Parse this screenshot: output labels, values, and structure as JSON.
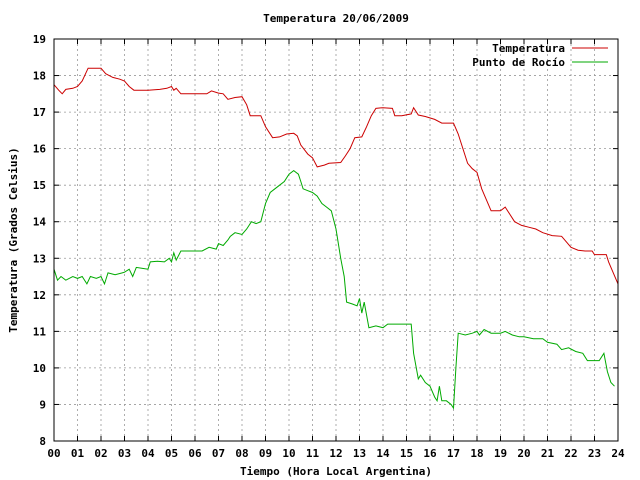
{
  "chart_data": {
    "type": "line",
    "title": "Temperatura 20/06/2009",
    "xlabel": "Tiempo (Hora Local Argentina)",
    "ylabel": "Temperatura (Grados Celsius)",
    "xlim": [
      0,
      24
    ],
    "ylim": [
      8,
      19
    ],
    "x_ticks": [
      "00",
      "01",
      "02",
      "03",
      "04",
      "05",
      "06",
      "07",
      "08",
      "09",
      "10",
      "11",
      "12",
      "13",
      "14",
      "15",
      "16",
      "17",
      "18",
      "19",
      "20",
      "21",
      "22",
      "23",
      "24"
    ],
    "y_ticks": [
      "8",
      "9",
      "10",
      "11",
      "12",
      "13",
      "14",
      "15",
      "16",
      "17",
      "18",
      "19"
    ],
    "grid": true,
    "legend_position": "top-right",
    "series": [
      {
        "name": "Temperatura",
        "color": "#cc0000",
        "points": [
          [
            0,
            17.75
          ],
          [
            0.2,
            17.6
          ],
          [
            0.35,
            17.5
          ],
          [
            0.5,
            17.62
          ],
          [
            0.8,
            17.65
          ],
          [
            1.0,
            17.7
          ],
          [
            1.2,
            17.85
          ],
          [
            1.45,
            18.2
          ],
          [
            2.0,
            18.2
          ],
          [
            2.2,
            18.05
          ],
          [
            2.5,
            17.95
          ],
          [
            2.8,
            17.9
          ],
          [
            3.0,
            17.85
          ],
          [
            3.2,
            17.7
          ],
          [
            3.4,
            17.6
          ],
          [
            4.0,
            17.6
          ],
          [
            4.5,
            17.62
          ],
          [
            4.8,
            17.65
          ],
          [
            5.0,
            17.7
          ],
          [
            5.1,
            17.6
          ],
          [
            5.2,
            17.65
          ],
          [
            5.4,
            17.5
          ],
          [
            5.8,
            17.5
          ],
          [
            6.5,
            17.5
          ],
          [
            6.7,
            17.58
          ],
          [
            7.0,
            17.52
          ],
          [
            7.2,
            17.5
          ],
          [
            7.4,
            17.35
          ],
          [
            7.7,
            17.4
          ],
          [
            8.0,
            17.42
          ],
          [
            8.2,
            17.2
          ],
          [
            8.35,
            16.9
          ],
          [
            8.8,
            16.9
          ],
          [
            9.0,
            16.6
          ],
          [
            9.3,
            16.3
          ],
          [
            9.6,
            16.32
          ],
          [
            9.9,
            16.4
          ],
          [
            10.2,
            16.42
          ],
          [
            10.35,
            16.35
          ],
          [
            10.5,
            16.1
          ],
          [
            10.8,
            15.85
          ],
          [
            11.0,
            15.75
          ],
          [
            11.2,
            15.5
          ],
          [
            11.5,
            15.55
          ],
          [
            11.7,
            15.6
          ],
          [
            12.2,
            15.62
          ],
          [
            12.4,
            15.8
          ],
          [
            12.6,
            16.0
          ],
          [
            12.8,
            16.3
          ],
          [
            13.1,
            16.32
          ],
          [
            13.3,
            16.6
          ],
          [
            13.5,
            16.9
          ],
          [
            13.7,
            17.1
          ],
          [
            14.0,
            17.12
          ],
          [
            14.4,
            17.1
          ],
          [
            14.5,
            16.9
          ],
          [
            14.8,
            16.9
          ],
          [
            15.2,
            16.95
          ],
          [
            15.3,
            17.12
          ],
          [
            15.5,
            16.92
          ],
          [
            15.8,
            16.88
          ],
          [
            16.2,
            16.8
          ],
          [
            16.5,
            16.7
          ],
          [
            17.0,
            16.7
          ],
          [
            17.2,
            16.4
          ],
          [
            17.4,
            16.0
          ],
          [
            17.6,
            15.6
          ],
          [
            17.8,
            15.45
          ],
          [
            18.0,
            15.35
          ],
          [
            18.2,
            14.9
          ],
          [
            18.4,
            14.6
          ],
          [
            18.6,
            14.3
          ],
          [
            19.0,
            14.3
          ],
          [
            19.2,
            14.4
          ],
          [
            19.4,
            14.2
          ],
          [
            19.6,
            14.0
          ],
          [
            19.9,
            13.9
          ],
          [
            20.2,
            13.85
          ],
          [
            20.5,
            13.8
          ],
          [
            20.8,
            13.7
          ],
          [
            21.2,
            13.62
          ],
          [
            21.6,
            13.6
          ],
          [
            21.8,
            13.45
          ],
          [
            22.0,
            13.3
          ],
          [
            22.3,
            13.22
          ],
          [
            22.6,
            13.2
          ],
          [
            22.9,
            13.2
          ],
          [
            23.0,
            13.1
          ],
          [
            23.5,
            13.1
          ],
          [
            23.6,
            12.9
          ],
          [
            23.8,
            12.6
          ],
          [
            24.0,
            12.3
          ]
        ]
      },
      {
        "name": "Punto de Rocío",
        "color": "#00aa00",
        "points": [
          [
            0,
            12.7
          ],
          [
            0.15,
            12.4
          ],
          [
            0.3,
            12.5
          ],
          [
            0.5,
            12.4
          ],
          [
            0.8,
            12.5
          ],
          [
            1.0,
            12.45
          ],
          [
            1.2,
            12.5
          ],
          [
            1.4,
            12.3
          ],
          [
            1.55,
            12.5
          ],
          [
            1.8,
            12.45
          ],
          [
            2.0,
            12.5
          ],
          [
            2.15,
            12.3
          ],
          [
            2.3,
            12.6
          ],
          [
            2.6,
            12.55
          ],
          [
            2.9,
            12.6
          ],
          [
            3.0,
            12.62
          ],
          [
            3.2,
            12.7
          ],
          [
            3.35,
            12.5
          ],
          [
            3.5,
            12.75
          ],
          [
            3.8,
            12.72
          ],
          [
            4.0,
            12.7
          ],
          [
            4.1,
            12.9
          ],
          [
            4.4,
            12.92
          ],
          [
            4.7,
            12.9
          ],
          [
            4.9,
            13.0
          ],
          [
            5.0,
            12.9
          ],
          [
            5.1,
            13.15
          ],
          [
            5.2,
            12.95
          ],
          [
            5.4,
            13.2
          ],
          [
            5.8,
            13.2
          ],
          [
            6.3,
            13.2
          ],
          [
            6.6,
            13.3
          ],
          [
            6.9,
            13.25
          ],
          [
            7.0,
            13.4
          ],
          [
            7.2,
            13.35
          ],
          [
            7.4,
            13.5
          ],
          [
            7.5,
            13.6
          ],
          [
            7.7,
            13.7
          ],
          [
            8.0,
            13.65
          ],
          [
            8.2,
            13.8
          ],
          [
            8.4,
            14.0
          ],
          [
            8.6,
            13.95
          ],
          [
            8.8,
            14.0
          ],
          [
            9.0,
            14.5
          ],
          [
            9.2,
            14.8
          ],
          [
            9.4,
            14.9
          ],
          [
            9.6,
            15.0
          ],
          [
            9.8,
            15.1
          ],
          [
            10.0,
            15.3
          ],
          [
            10.2,
            15.4
          ],
          [
            10.4,
            15.3
          ],
          [
            10.5,
            15.1
          ],
          [
            10.6,
            14.9
          ],
          [
            10.8,
            14.85
          ],
          [
            11.0,
            14.8
          ],
          [
            11.2,
            14.7
          ],
          [
            11.4,
            14.5
          ],
          [
            11.6,
            14.4
          ],
          [
            11.8,
            14.3
          ],
          [
            12.0,
            13.8
          ],
          [
            12.2,
            13.0
          ],
          [
            12.35,
            12.5
          ],
          [
            12.45,
            11.8
          ],
          [
            12.7,
            11.75
          ],
          [
            12.9,
            11.7
          ],
          [
            13.0,
            11.9
          ],
          [
            13.1,
            11.5
          ],
          [
            13.2,
            11.8
          ],
          [
            13.4,
            11.1
          ],
          [
            13.7,
            11.15
          ],
          [
            14.0,
            11.1
          ],
          [
            14.2,
            11.2
          ],
          [
            14.6,
            11.2
          ],
          [
            15.0,
            11.2
          ],
          [
            15.2,
            11.2
          ],
          [
            15.3,
            10.4
          ],
          [
            15.5,
            9.7
          ],
          [
            15.6,
            9.8
          ],
          [
            15.8,
            9.6
          ],
          [
            16.0,
            9.5
          ],
          [
            16.2,
            9.2
          ],
          [
            16.3,
            9.1
          ],
          [
            16.4,
            9.5
          ],
          [
            16.5,
            9.1
          ],
          [
            16.7,
            9.1
          ],
          [
            16.9,
            9.0
          ],
          [
            17.0,
            8.9
          ],
          [
            17.1,
            10.0
          ],
          [
            17.2,
            10.95
          ],
          [
            17.5,
            10.9
          ],
          [
            17.8,
            10.95
          ],
          [
            18.0,
            11.0
          ],
          [
            18.1,
            10.9
          ],
          [
            18.3,
            11.05
          ],
          [
            18.6,
            10.95
          ],
          [
            19.0,
            10.95
          ],
          [
            19.2,
            11.0
          ],
          [
            19.5,
            10.9
          ],
          [
            19.8,
            10.85
          ],
          [
            20.0,
            10.85
          ],
          [
            20.4,
            10.8
          ],
          [
            20.8,
            10.8
          ],
          [
            21.0,
            10.7
          ],
          [
            21.4,
            10.65
          ],
          [
            21.6,
            10.5
          ],
          [
            21.9,
            10.55
          ],
          [
            22.2,
            10.45
          ],
          [
            22.5,
            10.4
          ],
          [
            22.7,
            10.2
          ],
          [
            23.0,
            10.2
          ],
          [
            23.2,
            10.2
          ],
          [
            23.4,
            10.4
          ],
          [
            23.55,
            9.9
          ],
          [
            23.7,
            9.6
          ],
          [
            23.85,
            9.5
          ]
        ]
      }
    ]
  }
}
